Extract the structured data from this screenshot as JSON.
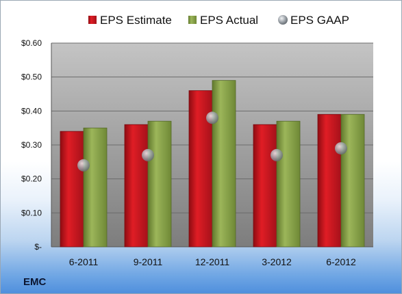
{
  "company_label": "EMC",
  "colors": {
    "estimate": "#c8141c",
    "actual": "#8aa347",
    "gaap": "#9aa2a8",
    "plot_top": "#b9b9b9",
    "plot_bottom": "#7a7a7a"
  },
  "chart_data": {
    "type": "bar",
    "categories": [
      "6-2011",
      "9-2011",
      "12-2011",
      "3-2012",
      "6-2012"
    ],
    "series": [
      {
        "name": "EPS Estimate",
        "kind": "bar",
        "values": [
          0.34,
          0.36,
          0.46,
          0.36,
          0.39
        ]
      },
      {
        "name": "EPS Actual",
        "kind": "bar",
        "values": [
          0.35,
          0.37,
          0.49,
          0.37,
          0.39
        ]
      },
      {
        "name": "EPS GAAP",
        "kind": "marker",
        "values": [
          0.24,
          0.27,
          0.38,
          0.27,
          0.29
        ]
      }
    ],
    "ylim": [
      0,
      0.6
    ],
    "yticks": [
      0,
      0.1,
      0.2,
      0.3,
      0.4,
      0.5,
      0.6
    ],
    "ytick_labels": [
      "$-",
      "$0.10",
      "$0.20",
      "$0.30",
      "$0.40",
      "$0.50",
      "$0.60"
    ],
    "grid": true,
    "legend_position": "top"
  }
}
